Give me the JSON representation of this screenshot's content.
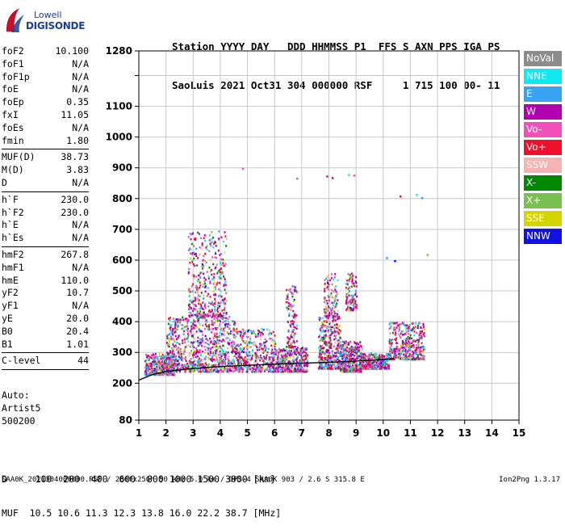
{
  "logo": {
    "line1": "Lowell",
    "line2": "DIGISONDE"
  },
  "header": {
    "labels": [
      "Station",
      "YYYY",
      "DAY",
      "DDD",
      "HHMMSS",
      "P1",
      "FFS",
      "S",
      "AXN",
      "PPS",
      "IGA",
      "PS"
    ],
    "values": [
      "SaoLuis",
      "2021",
      "Oct31",
      "304",
      "000000",
      "RSF",
      "1",
      "715",
      "100",
      "00-",
      "11"
    ],
    "line1": "Station YYYY DAY   DDD HHMMSS P1  FFS S AXN PPS IGA PS",
    "line2": "SaoLuis 2021 Oct31 304 000000 RSF     1 715 100 00- 11"
  },
  "params": {
    "group1": [
      {
        "label": "foF2",
        "value": "10.100"
      },
      {
        "label": "foF1",
        "value": "N/A"
      },
      {
        "label": "foF1p",
        "value": "N/A"
      },
      {
        "label": "foE",
        "value": "N/A"
      },
      {
        "label": "foEp",
        "value": "0.35"
      },
      {
        "label": "fxI",
        "value": "11.05"
      },
      {
        "label": "foEs",
        "value": "N/A"
      },
      {
        "label": "fmin",
        "value": "1.80"
      }
    ],
    "group2": [
      {
        "label": "MUF(D)",
        "value": "38.73"
      },
      {
        "label": "M(D)",
        "value": "3.83"
      },
      {
        "label": "D",
        "value": "N/A"
      }
    ],
    "group3": [
      {
        "label": "h`F",
        "value": "230.0"
      },
      {
        "label": "h`F2",
        "value": "230.0"
      },
      {
        "label": "h`E",
        "value": "N/A"
      },
      {
        "label": "h`Es",
        "value": "N/A"
      }
    ],
    "group4": [
      {
        "label": "hmF2",
        "value": "267.8"
      },
      {
        "label": "hmF1",
        "value": "N/A"
      },
      {
        "label": "hmE",
        "value": "110.0"
      },
      {
        "label": "yF2",
        "value": "10.7"
      },
      {
        "label": "yF1",
        "value": "N/A"
      },
      {
        "label": "yE",
        "value": "20.0"
      },
      {
        "label": "B0",
        "value": "20.4"
      },
      {
        "label": "B1",
        "value": "1.01"
      }
    ],
    "group5": [
      {
        "label": "C-level",
        "value": "44"
      }
    ]
  },
  "auto": {
    "line1": "Auto:",
    "line2": "Artist5",
    "line3": "500200"
  },
  "legend": [
    {
      "label": "NoVal",
      "color": "#8c8c8c"
    },
    {
      "label": "NNE",
      "color": "#10e8f0"
    },
    {
      "label": "E",
      "color": "#3aa2f2"
    },
    {
      "label": "W",
      "color": "#b000b0"
    },
    {
      "label": "Vo-",
      "color": "#f050b8"
    },
    {
      "label": "Vo+",
      "color": "#f0102c"
    },
    {
      "label": "SSW",
      "color": "#f4b4b4"
    },
    {
      "label": "X-",
      "color": "#008800"
    },
    {
      "label": "X+",
      "color": "#78c050"
    },
    {
      "label": "SSE",
      "color": "#d4d400"
    },
    {
      "label": "NNW",
      "color": "#1010e0"
    }
  ],
  "chart_data": {
    "type": "scatter",
    "title": "",
    "xlabel": "",
    "ylabel": "",
    "xlim": [
      1,
      15
    ],
    "ylim": [
      80,
      1280
    ],
    "x_ticks": [
      1,
      2,
      3,
      4,
      5,
      6,
      7,
      8,
      9,
      10,
      11,
      12,
      13,
      14,
      15
    ],
    "y_ticks": [
      80,
      200,
      300,
      400,
      500,
      600,
      700,
      800,
      900,
      1000,
      1100,
      1200,
      1280
    ],
    "y_tick_labels": [
      "80",
      "200",
      "300",
      "400",
      "500",
      "600",
      "700",
      "800",
      "900",
      "1000",
      "1100",
      "",
      "1280"
    ],
    "grid": true,
    "legend_placement": "right",
    "trace_curve": {
      "x": [
        1.0,
        1.5,
        2.0,
        3.0,
        4.0,
        5.0,
        6.0,
        7.0,
        8.0,
        9.0,
        10.0,
        10.4
      ],
      "y": [
        210,
        228,
        238,
        248,
        254,
        258,
        262,
        265,
        268,
        272,
        277,
        281
      ]
    },
    "echo_clusters": [
      {
        "x": [
          1.2,
          2.3
        ],
        "y": [
          230,
          300
        ],
        "density": "medium"
      },
      {
        "x": [
          2.0,
          4.6
        ],
        "y": [
          240,
          420
        ],
        "density": "high"
      },
      {
        "x": [
          2.8,
          4.2
        ],
        "y": [
          420,
          700
        ],
        "density": "medium"
      },
      {
        "x": [
          4.6,
          6.0
        ],
        "y": [
          240,
          380
        ],
        "density": "medium"
      },
      {
        "x": [
          6.0,
          7.2
        ],
        "y": [
          240,
          320
        ],
        "density": "medium"
      },
      {
        "x": [
          6.4,
          6.8
        ],
        "y": [
          320,
          520
        ],
        "density": "low"
      },
      {
        "x": [
          7.6,
          8.4
        ],
        "y": [
          250,
          420
        ],
        "density": "medium"
      },
      {
        "x": [
          7.8,
          8.3
        ],
        "y": [
          420,
          560
        ],
        "density": "low"
      },
      {
        "x": [
          8.4,
          9.2
        ],
        "y": [
          240,
          340
        ],
        "density": "medium"
      },
      {
        "x": [
          8.6,
          9.0
        ],
        "y": [
          440,
          560
        ],
        "density": "low"
      },
      {
        "x": [
          9.2,
          10.2
        ],
        "y": [
          250,
          300
        ],
        "density": "medium"
      },
      {
        "x": [
          10.2,
          11.5
        ],
        "y": [
          280,
          400
        ],
        "density": "medium"
      }
    ],
    "isolated_points": [
      {
        "x": 7.9,
        "y": 875
      },
      {
        "x": 8.1,
        "y": 870
      },
      {
        "x": 8.7,
        "y": 880
      },
      {
        "x": 8.9,
        "y": 878
      },
      {
        "x": 10.6,
        "y": 810
      },
      {
        "x": 11.2,
        "y": 815
      },
      {
        "x": 11.4,
        "y": 805
      },
      {
        "x": 4.8,
        "y": 900
      },
      {
        "x": 6.8,
        "y": 868
      },
      {
        "x": 10.1,
        "y": 610
      },
      {
        "x": 10.4,
        "y": 600
      },
      {
        "x": 11.6,
        "y": 620
      }
    ]
  },
  "footer": {
    "d_line": "D     100  200  400  600  800 1000 1500 3000 [km]",
    "muf_line": "MUF  10.5 10.6 11.3 12.3 13.8 16.0 22.2 38.7 [MHz]",
    "file_line": "SAA0K_2021304000000.RSF / 280fx256h 50 kHz 5.0 km / DPS-4 SAA0K 903 / 2.6 S 315.8 E",
    "version": "Ion2Png 1.3.17"
  }
}
